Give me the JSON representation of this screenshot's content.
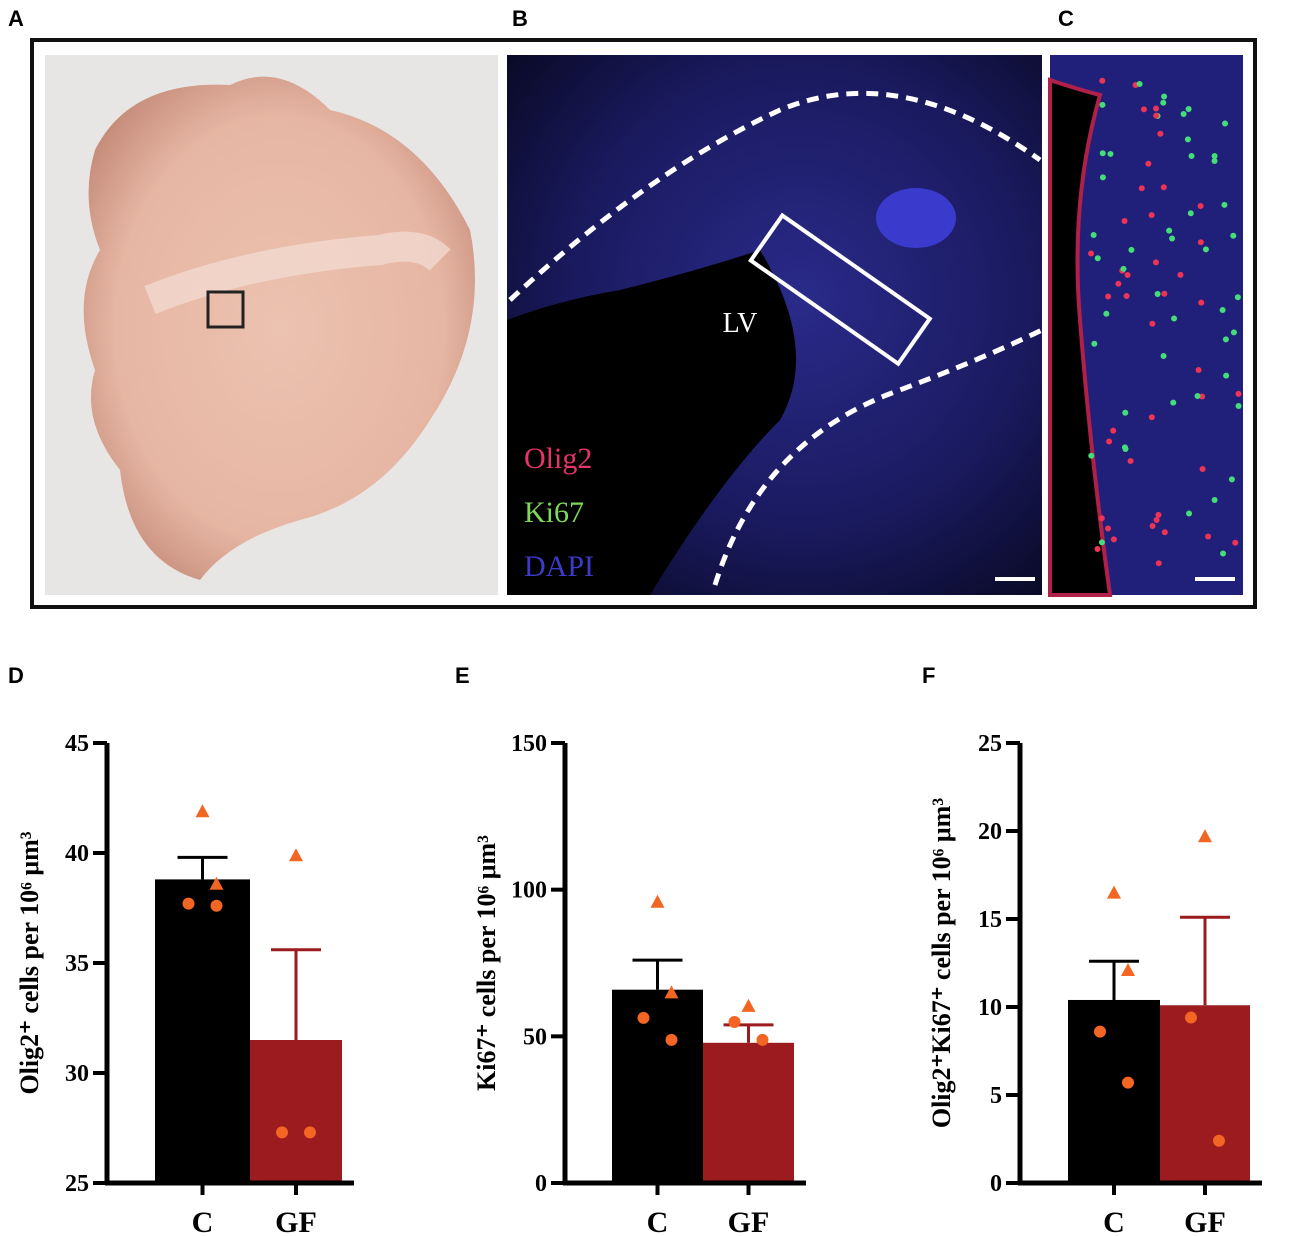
{
  "panels": {
    "a": "A",
    "b": "B",
    "c": "C",
    "lv": "LV",
    "stains": [
      "Olig2",
      "Ki67",
      "DAPI"
    ]
  },
  "chart_data": [
    {
      "type": "bar",
      "panel": "D",
      "ylabel": "Olig2⁺ cells per 10⁶ μm³",
      "categories": [
        "C",
        "GF"
      ],
      "values": [
        38.8,
        31.5
      ],
      "errors": [
        1.0,
        4.1
      ],
      "colors": [
        "#000000",
        "#9b1b1e"
      ],
      "ylim": [
        25,
        45
      ],
      "yticks": [
        25,
        30,
        35,
        40,
        45
      ],
      "point_color": "#f26522",
      "points": [
        {
          "marker": "triangle",
          "values": [
            41.9,
            39.9
          ]
        },
        {
          "marker": "triangle",
          "values": [
            38.6,
            null
          ]
        },
        {
          "marker": "circle",
          "values": [
            37.7,
            27.3
          ]
        },
        {
          "marker": "circle",
          "values": [
            37.6,
            27.3
          ]
        }
      ]
    },
    {
      "type": "bar",
      "panel": "E",
      "ylabel": "Ki67⁺ cells per 10⁶ μm³",
      "categories": [
        "C",
        "GF"
      ],
      "values": [
        65.9,
        47.8
      ],
      "errors": [
        10.1,
        6.1
      ],
      "colors": [
        "#000000",
        "#9b1b1e"
      ],
      "ylim": [
        0,
        150
      ],
      "yticks": [
        0,
        50,
        100,
        150
      ],
      "point_color": "#f26522",
      "points": [
        {
          "marker": "triangle",
          "values": [
            95.9,
            60.4
          ]
        },
        {
          "marker": "triangle",
          "values": [
            65,
            null
          ]
        },
        {
          "marker": "circle",
          "values": [
            56.3,
            54.9
          ]
        },
        {
          "marker": "circle",
          "values": [
            48.8,
            48.8
          ]
        }
      ]
    },
    {
      "type": "bar",
      "panel": "F",
      "ylabel": "Olig2⁺Ki67⁺ cells per 10⁶ μm³",
      "categories": [
        "C",
        "GF"
      ],
      "values": [
        10.4,
        10.1
      ],
      "errors": [
        2.2,
        5.0
      ],
      "colors": [
        "#000000",
        "#9b1b1e"
      ],
      "ylim": [
        0,
        25
      ],
      "yticks": [
        0,
        5,
        10,
        15,
        20,
        25
      ],
      "point_color": "#f26522",
      "points": [
        {
          "marker": "triangle",
          "values": [
            16.5,
            19.7
          ]
        },
        {
          "marker": "triangle",
          "values": [
            12.1,
            null
          ]
        },
        {
          "marker": "circle",
          "values": [
            8.6,
            9.4
          ]
        },
        {
          "marker": "circle",
          "values": [
            5.7,
            2.4
          ]
        }
      ]
    }
  ]
}
